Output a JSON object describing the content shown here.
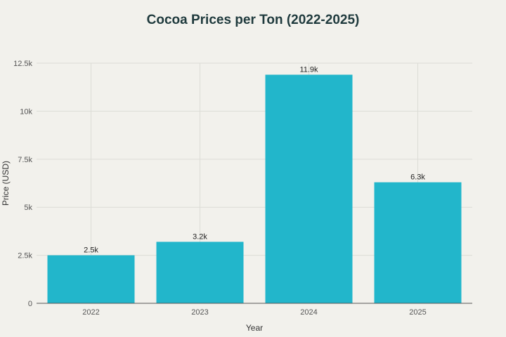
{
  "chart_data": {
    "type": "bar",
    "title": "Cocoa Prices per Ton (2022-2025)",
    "xlabel": "Year",
    "ylabel": "Price (USD)",
    "categories": [
      "2022",
      "2023",
      "2024",
      "2025"
    ],
    "values": [
      2500,
      3200,
      11900,
      6300
    ],
    "data_labels": [
      "2.5k",
      "3.2k",
      "11.9k",
      "6.3k"
    ],
    "ylim": [
      0,
      12500
    ],
    "yticks": [
      0,
      2500,
      5000,
      7500,
      10000,
      12500
    ],
    "ytick_labels": [
      "0",
      "2.5k",
      "5k",
      "7.5k",
      "10k",
      "12.5k"
    ],
    "grid": true,
    "legend": "none",
    "bar_color": "#22b6cb",
    "background_color": "#f2f1ec",
    "grid_color": "#dcdcd6"
  }
}
